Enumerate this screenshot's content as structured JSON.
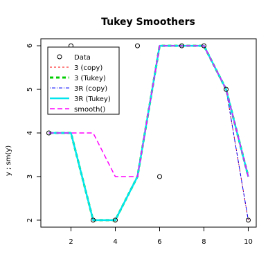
{
  "chart_data": {
    "type": "line",
    "title": "Tukey Smoothers",
    "xlabel": "",
    "ylabel": "y ;  sm(y)",
    "xlim": [
      0.64,
      10.36
    ],
    "ylim": [
      1.84,
      6.16
    ],
    "xticks": [
      2,
      4,
      6,
      8,
      10
    ],
    "yticks": [
      2,
      3,
      4,
      5,
      6
    ],
    "grid": false,
    "legend_position": "top-left",
    "x": [
      1,
      2,
      3,
      4,
      5,
      6,
      7,
      8,
      9,
      10
    ],
    "points": {
      "name": "Data",
      "y": [
        4,
        6,
        2,
        2,
        6,
        3,
        6,
        6,
        5,
        2
      ],
      "color": "#000000",
      "marker": "open-circle"
    },
    "series": [
      {
        "name": "3  (copy)",
        "values": [
          4,
          4,
          2,
          2,
          3,
          6,
          6,
          6,
          5,
          2
        ],
        "color": "#ff0000",
        "dash": "3,3",
        "width": 1
      },
      {
        "name": "3  (Tukey)",
        "values": [
          4,
          4,
          2,
          2,
          3,
          6,
          6,
          6,
          5,
          3
        ],
        "color": "#00cd00",
        "dash": "5,4",
        "width": 3
      },
      {
        "name": "3R  (copy)",
        "values": [
          4,
          4,
          2,
          2,
          3,
          6,
          6,
          6,
          5,
          2
        ],
        "color": "#0000ff",
        "dash": "1,2,5,2",
        "width": 1
      },
      {
        "name": "3R (Tukey)",
        "values": [
          4,
          4,
          2,
          2,
          3,
          6,
          6,
          6,
          5,
          3
        ],
        "color": "#00e5ee",
        "dash": "",
        "width": 2.5
      },
      {
        "name": "smooth()",
        "values": [
          4,
          4,
          4,
          3,
          3,
          6,
          6,
          6,
          5,
          3
        ],
        "color": "#ff00ff",
        "dash": "7,4",
        "width": 1.5
      }
    ]
  }
}
